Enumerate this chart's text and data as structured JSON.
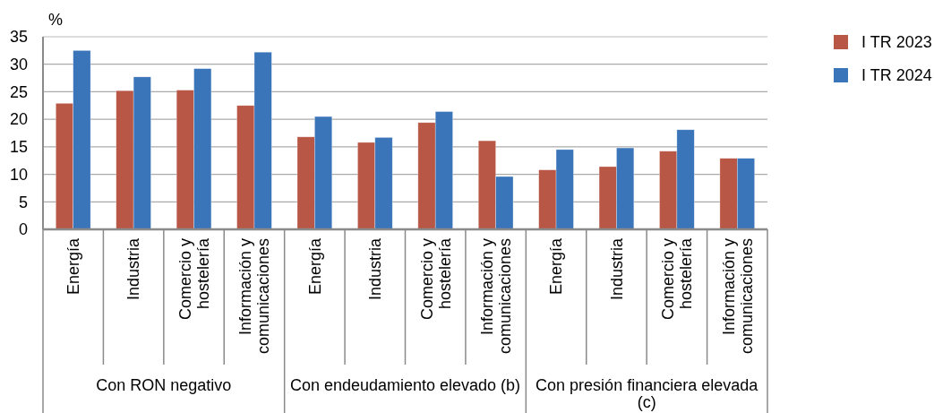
{
  "chart_data": {
    "type": "bar",
    "ylabel": "%",
    "categories": [
      "Energía",
      "Industria",
      "Comercio y hostelería",
      "Información y comunicaciones",
      "Energía",
      "Industria",
      "Comercio y hostelería",
      "Información y comunicaciones",
      "Energía",
      "Industria",
      "Comercio y hostelería",
      "Información y comunicaciones"
    ],
    "annotations": [
      "Con RON negativo",
      "Con endeudamiento elevado (b)",
      "Con presión financiera elevada (c)"
    ],
    "series": [
      {
        "name": "I TR 2023",
        "color": "#b85746",
        "values": [
          22.9,
          25.2,
          25.3,
          22.5,
          16.8,
          15.8,
          19.4,
          16.1,
          10.8,
          11.4,
          14.2,
          12.9
        ]
      },
      {
        "name": "I TR 2024",
        "color": "#3a74b9",
        "values": [
          32.5,
          27.7,
          29.2,
          32.2,
          20.5,
          16.7,
          21.4,
          9.6,
          14.5,
          14.8,
          18.1,
          12.9
        ]
      }
    ],
    "ylim": [
      0,
      35
    ],
    "yticks": [
      0,
      5,
      10,
      15,
      20,
      25,
      30,
      35
    ],
    "grid": "y",
    "legend": "top right"
  }
}
